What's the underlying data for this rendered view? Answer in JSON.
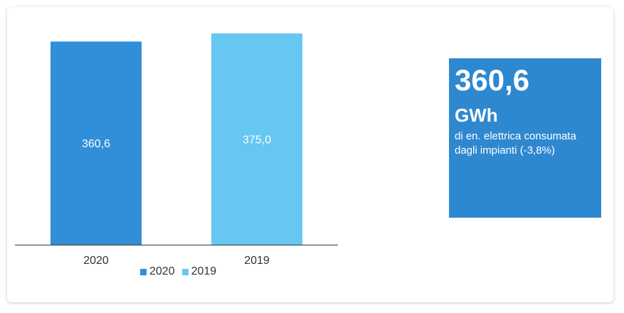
{
  "colors": {
    "series_2020": "#318ed8",
    "series_2019": "#66c7f2",
    "kpi_bg": "#2e88d0",
    "axis": "#333333"
  },
  "chart_data": {
    "type": "bar",
    "categories": [
      "2020",
      "2019"
    ],
    "values": [
      360.6,
      375.0
    ],
    "data_labels": [
      "360,6",
      "375,0"
    ],
    "ylim": [
      0,
      375.0
    ],
    "grid": false,
    "legend_position": "bottom",
    "legend": [
      "2020",
      "2019"
    ]
  },
  "kpi": {
    "value": "360,6",
    "unit": "GWh",
    "description": "di en. elettrica consumata dagli impianti (-3,8%)"
  }
}
